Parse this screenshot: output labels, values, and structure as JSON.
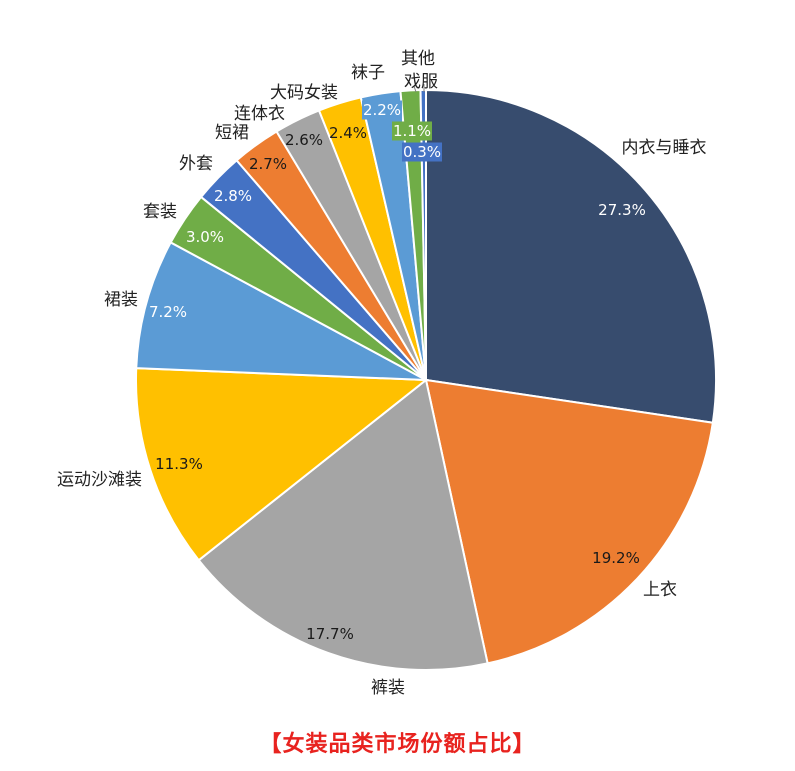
{
  "chart_data": {
    "type": "pie",
    "title": "【女装品类市场份额占比】",
    "slices": [
      {
        "label": "内衣与睡衣",
        "value": 27.3,
        "pct": "27.3%",
        "color": "#374c6e"
      },
      {
        "label": "上衣",
        "value": 19.2,
        "pct": "19.2%",
        "color": "#ed7d31"
      },
      {
        "label": "裤装",
        "value": 17.7,
        "pct": "17.7%",
        "color": "#a5a5a5"
      },
      {
        "label": "运动沙滩装",
        "value": 11.3,
        "pct": "11.3%",
        "color": "#ffc000"
      },
      {
        "label": "裙装",
        "value": 7.2,
        "pct": "7.2%",
        "color": "#5b9bd5"
      },
      {
        "label": "套装",
        "value": 3.0,
        "pct": "3.0%",
        "color": "#70ad47"
      },
      {
        "label": "外套",
        "value": 2.8,
        "pct": "2.8%",
        "color": "#4472c4"
      },
      {
        "label": "短裙",
        "value": 2.7,
        "pct": "2.7%",
        "color": "#ed7d31"
      },
      {
        "label": "连体衣",
        "value": 2.6,
        "pct": "2.6%",
        "color": "#a5a5a5"
      },
      {
        "label": "大码女装",
        "value": 2.4,
        "pct": "2.4%",
        "color": "#ffc000"
      },
      {
        "label": "袜子",
        "value": 2.2,
        "pct": "2.2%",
        "color": "#5b9bd5"
      },
      {
        "label": "戏服",
        "value": 1.1,
        "pct": "1.1%",
        "color": "#70ad47"
      },
      {
        "label": "其他",
        "value": 0.3,
        "pct": "0.3%",
        "color": "#4472c4"
      }
    ],
    "start_angle": "12 o'clock",
    "direction": "clockwise",
    "legend": "none",
    "title_color": "#e8231f"
  }
}
